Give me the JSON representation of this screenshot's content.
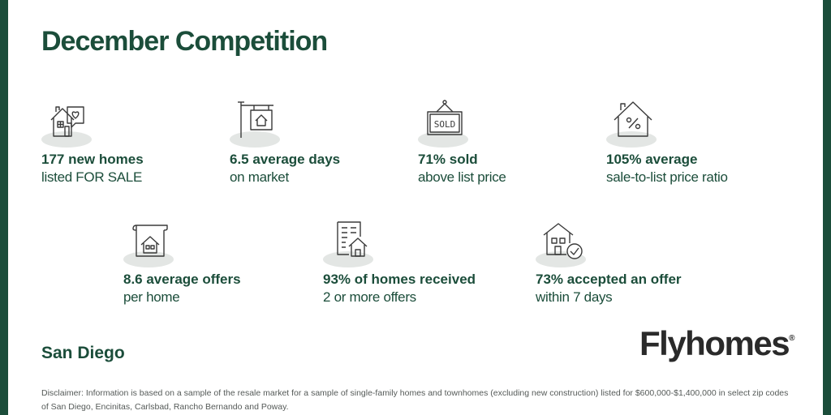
{
  "title": "December Competition",
  "colors": {
    "accent": "#1b4d3a",
    "icon_stroke": "#3a3a3a",
    "icon_shadow": "#e3e6e4"
  },
  "stats": [
    {
      "icon": "house-heart-icon",
      "bold": "177 new homes",
      "sub": "listed FOR SALE"
    },
    {
      "icon": "for-sale-sign-icon",
      "bold": "6.5 average days",
      "sub": "on market"
    },
    {
      "icon": "sold-sign-icon",
      "bold": "71% sold",
      "sub": "above list price"
    },
    {
      "icon": "house-percent-icon",
      "bold": "105% average",
      "sub": "sale-to-list price ratio"
    },
    {
      "icon": "offer-scroll-icon",
      "bold": "8.6  average offers",
      "sub": "per home"
    },
    {
      "icon": "document-house-icon",
      "bold": "93% of homes received",
      "sub": "2 or more offers"
    },
    {
      "icon": "house-check-icon",
      "bold": "73% accepted an offer",
      "sub": "within 7 days"
    }
  ],
  "city": "San Diego",
  "brand": {
    "name": "Flyhomes",
    "mark": "®"
  },
  "disclaimer": "Disclaimer: Information is based on a sample of the resale market for a sample of single-family homes and townhomes (excluding new construction) listed for $600,000-$1,400,000 in select zip codes of San Diego, Encinitas, Carlsbad, Rancho Bernando and Poway."
}
